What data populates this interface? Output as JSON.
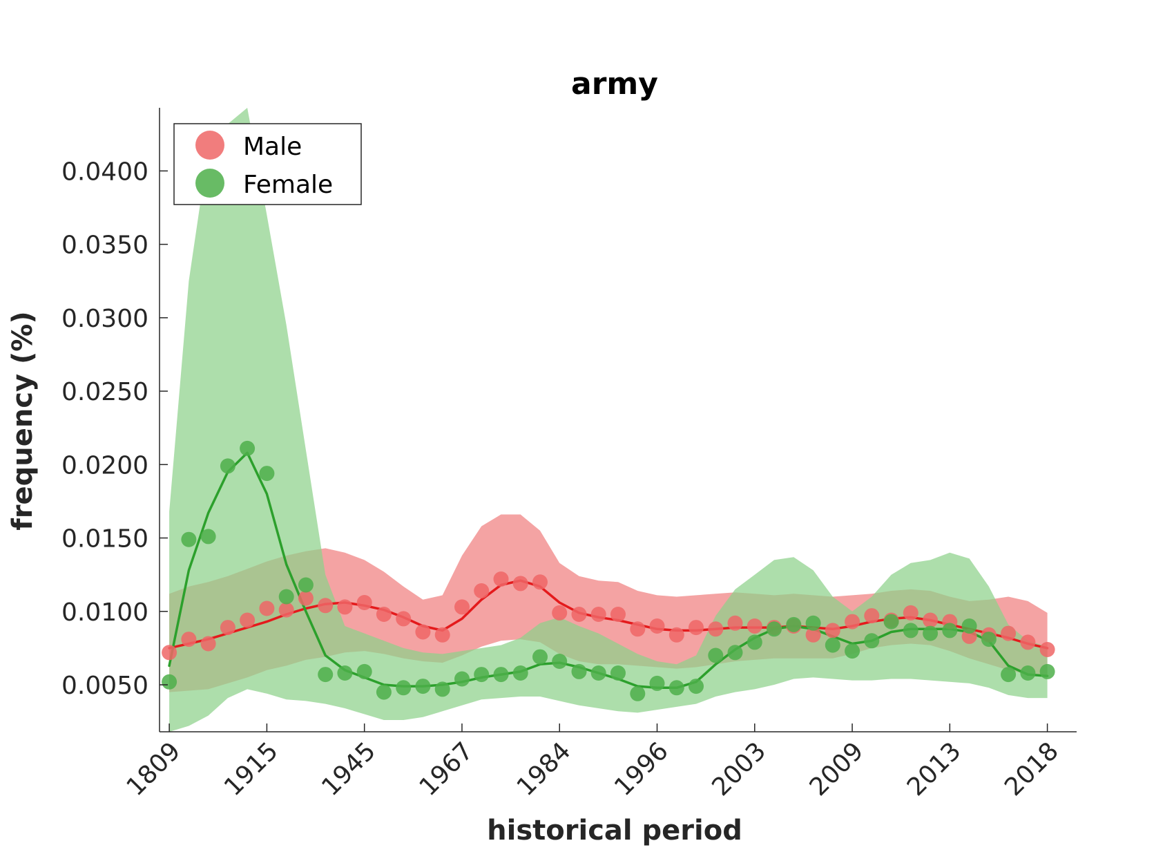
{
  "chart_data": {
    "type": "line",
    "title": "army",
    "xlabel": "historical period",
    "ylabel": "frequency (%)",
    "ylim": [
      0.0018,
      0.0443
    ],
    "yticks": [
      0.005,
      0.01,
      0.015,
      0.02,
      0.025,
      0.03,
      0.035,
      0.04
    ],
    "ytick_labels": [
      "0.0050",
      "0.0100",
      "0.0150",
      "0.0200",
      "0.0250",
      "0.0300",
      "0.0350",
      "0.0400"
    ],
    "xlim": [
      -0.5,
      46.5
    ],
    "xticks": [
      0,
      5,
      10,
      15,
      20,
      25,
      30,
      35,
      40,
      45
    ],
    "xtick_labels": [
      "1809",
      "1915",
      "1945",
      "1967",
      "1984",
      "1996",
      "2003",
      "2009",
      "2013",
      "2018"
    ],
    "legend": {
      "position": "top-left",
      "entries": [
        "Male",
        "Female"
      ]
    },
    "series": [
      {
        "name": "Male",
        "color": "#e41a1c",
        "marker_color": "#ee6666",
        "band_color": "#f08080",
        "points": [
          0.0072,
          0.0081,
          0.0078,
          0.0089,
          0.0094,
          0.0102,
          0.0101,
          0.0109,
          0.0104,
          0.0103,
          0.0106,
          0.0098,
          0.0095,
          0.0086,
          0.0084,
          0.0103,
          0.0114,
          0.0122,
          0.0119,
          0.012,
          0.0099,
          0.0098,
          0.0098,
          0.0098,
          0.0088,
          0.009,
          0.0084,
          0.0089,
          0.0088,
          0.0092,
          0.009,
          0.0089,
          0.009,
          0.0084,
          0.0087,
          0.0093,
          0.0097,
          0.0094,
          0.0099,
          0.0094,
          0.0093,
          0.0083,
          0.0084,
          0.0085,
          0.0079,
          0.0074
        ],
        "smooth": [
          0.0075,
          0.0078,
          0.0081,
          0.0085,
          0.0089,
          0.0093,
          0.0098,
          0.0102,
          0.0105,
          0.0106,
          0.0104,
          0.0101,
          0.0096,
          0.009,
          0.0087,
          0.0095,
          0.0108,
          0.0118,
          0.0121,
          0.0117,
          0.0106,
          0.0099,
          0.0096,
          0.0094,
          0.0091,
          0.0088,
          0.0087,
          0.0087,
          0.0088,
          0.0089,
          0.0089,
          0.0089,
          0.009,
          0.0089,
          0.0088,
          0.009,
          0.0093,
          0.0095,
          0.0096,
          0.0094,
          0.0091,
          0.0088,
          0.0085,
          0.0082,
          0.0078,
          0.0075
        ],
        "band_low": [
          0.0045,
          0.0046,
          0.0047,
          0.0051,
          0.0055,
          0.006,
          0.0063,
          0.0067,
          0.0069,
          0.0072,
          0.0073,
          0.0071,
          0.0068,
          0.0066,
          0.0065,
          0.007,
          0.0076,
          0.008,
          0.0081,
          0.0079,
          0.0071,
          0.0066,
          0.0064,
          0.0064,
          0.0063,
          0.0062,
          0.0061,
          0.0062,
          0.0064,
          0.0066,
          0.0067,
          0.0068,
          0.0068,
          0.0068,
          0.0068,
          0.0071,
          0.0075,
          0.0077,
          0.0078,
          0.0077,
          0.0073,
          0.0068,
          0.0064,
          0.006,
          0.0057,
          0.0056
        ],
        "band_high": [
          0.0112,
          0.0117,
          0.012,
          0.0124,
          0.0129,
          0.0134,
          0.0138,
          0.0141,
          0.0143,
          0.014,
          0.0135,
          0.0127,
          0.0117,
          0.0108,
          0.0111,
          0.0138,
          0.0158,
          0.0166,
          0.0166,
          0.0155,
          0.0133,
          0.0124,
          0.0121,
          0.012,
          0.0114,
          0.0111,
          0.011,
          0.0111,
          0.0112,
          0.0113,
          0.0112,
          0.0111,
          0.0112,
          0.0111,
          0.011,
          0.0111,
          0.0112,
          0.0114,
          0.0115,
          0.0114,
          0.011,
          0.0107,
          0.0108,
          0.011,
          0.0107,
          0.0099
        ]
      },
      {
        "name": "Female",
        "color": "#2ca02c",
        "marker_color": "#4daf4a",
        "band_color": "#8dd18a",
        "points": [
          0.0052,
          0.0149,
          0.0151,
          0.0199,
          0.0211,
          0.0194,
          0.011,
          0.0118,
          0.0057,
          0.0058,
          0.0059,
          0.0045,
          0.0048,
          0.0049,
          0.0047,
          0.0054,
          0.0057,
          0.0057,
          0.0058,
          0.0069,
          0.0066,
          0.0059,
          0.0058,
          0.0058,
          0.0044,
          0.0051,
          0.0048,
          0.0049,
          0.007,
          0.0072,
          0.0079,
          0.0088,
          0.0091,
          0.0092,
          0.0077,
          0.0073,
          0.008,
          0.0093,
          0.0087,
          0.0085,
          0.0087,
          0.009,
          0.0081,
          0.0057,
          0.0058,
          0.0059
        ],
        "smooth": [
          0.0063,
          0.0128,
          0.0167,
          0.0195,
          0.0208,
          0.018,
          0.0132,
          0.01,
          0.007,
          0.006,
          0.0055,
          0.005,
          0.0049,
          0.0049,
          0.005,
          0.0052,
          0.0055,
          0.0057,
          0.0059,
          0.0064,
          0.0065,
          0.0062,
          0.0058,
          0.0054,
          0.0049,
          0.0048,
          0.0048,
          0.0052,
          0.0064,
          0.0074,
          0.0082,
          0.0088,
          0.009,
          0.0088,
          0.0083,
          0.0078,
          0.008,
          0.0086,
          0.0088,
          0.0088,
          0.0088,
          0.0086,
          0.008,
          0.0063,
          0.0057,
          0.0056
        ],
        "band_low": [
          0.0018,
          0.0022,
          0.0029,
          0.0041,
          0.0047,
          0.0044,
          0.004,
          0.0039,
          0.0037,
          0.0034,
          0.003,
          0.0026,
          0.0026,
          0.0028,
          0.0032,
          0.0036,
          0.004,
          0.0041,
          0.0042,
          0.0042,
          0.0039,
          0.0036,
          0.0034,
          0.0032,
          0.0031,
          0.0033,
          0.0035,
          0.0037,
          0.0042,
          0.0045,
          0.0047,
          0.005,
          0.0054,
          0.0055,
          0.0054,
          0.0053,
          0.0053,
          0.0054,
          0.0054,
          0.0053,
          0.0052,
          0.0051,
          0.0048,
          0.0043,
          0.0041,
          0.0041
        ],
        "band_high": [
          0.0168,
          0.0325,
          0.0415,
          0.0432,
          0.0443,
          0.037,
          0.0295,
          0.021,
          0.0125,
          0.009,
          0.0085,
          0.008,
          0.0075,
          0.0072,
          0.0071,
          0.0073,
          0.0075,
          0.0077,
          0.0082,
          0.0092,
          0.0096,
          0.009,
          0.0085,
          0.0078,
          0.0071,
          0.0066,
          0.0064,
          0.007,
          0.0097,
          0.0115,
          0.0125,
          0.0135,
          0.0137,
          0.0128,
          0.011,
          0.01,
          0.011,
          0.0125,
          0.0133,
          0.0135,
          0.014,
          0.0136,
          0.0117,
          0.0091,
          0.008,
          0.0076
        ]
      }
    ]
  }
}
